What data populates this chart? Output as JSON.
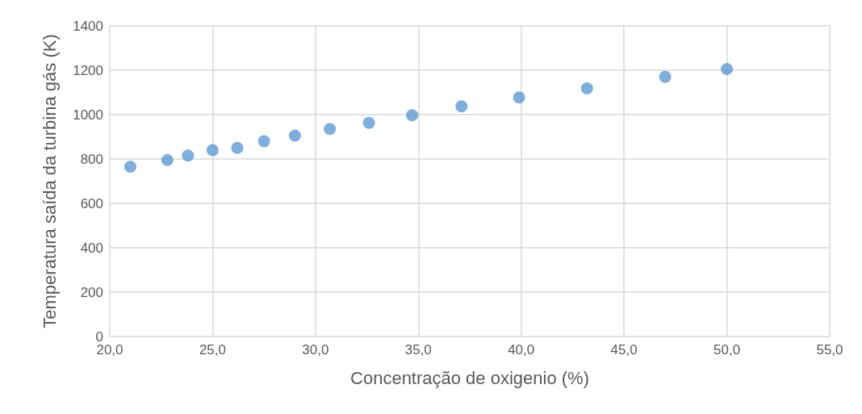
{
  "chart_data": {
    "type": "scatter",
    "xlabel": "Concentração de oxigenio (%)",
    "ylabel": "Temperatura saída da turbina gás (K)",
    "x": [
      21.0,
      22.8,
      23.8,
      25.0,
      26.2,
      27.5,
      29.0,
      30.7,
      32.6,
      34.7,
      37.1,
      39.9,
      43.2,
      47.0,
      50.0
    ],
    "series": [
      {
        "color": "#5b9bd5",
        "values": [
          765,
          795,
          815,
          840,
          850,
          880,
          905,
          935,
          963,
          997,
          1037,
          1077,
          1118,
          1170,
          1205
        ]
      }
    ],
    "xlim": [
      20,
      55
    ],
    "xticks": [
      {
        "value": 20,
        "label": "20,0"
      },
      {
        "value": 25,
        "label": "25,0"
      },
      {
        "value": 30,
        "label": "30,0"
      },
      {
        "value": 35,
        "label": "35,0"
      },
      {
        "value": 40,
        "label": "40,0"
      },
      {
        "value": 45,
        "label": "45,0"
      },
      {
        "value": 50,
        "label": "50,0"
      },
      {
        "value": 55,
        "label": "55,0"
      }
    ],
    "ylim": [
      0,
      1400
    ],
    "yticks": [
      0,
      200,
      400,
      600,
      800,
      1000,
      1200,
      1400
    ],
    "grid": true,
    "marker": "circle"
  }
}
